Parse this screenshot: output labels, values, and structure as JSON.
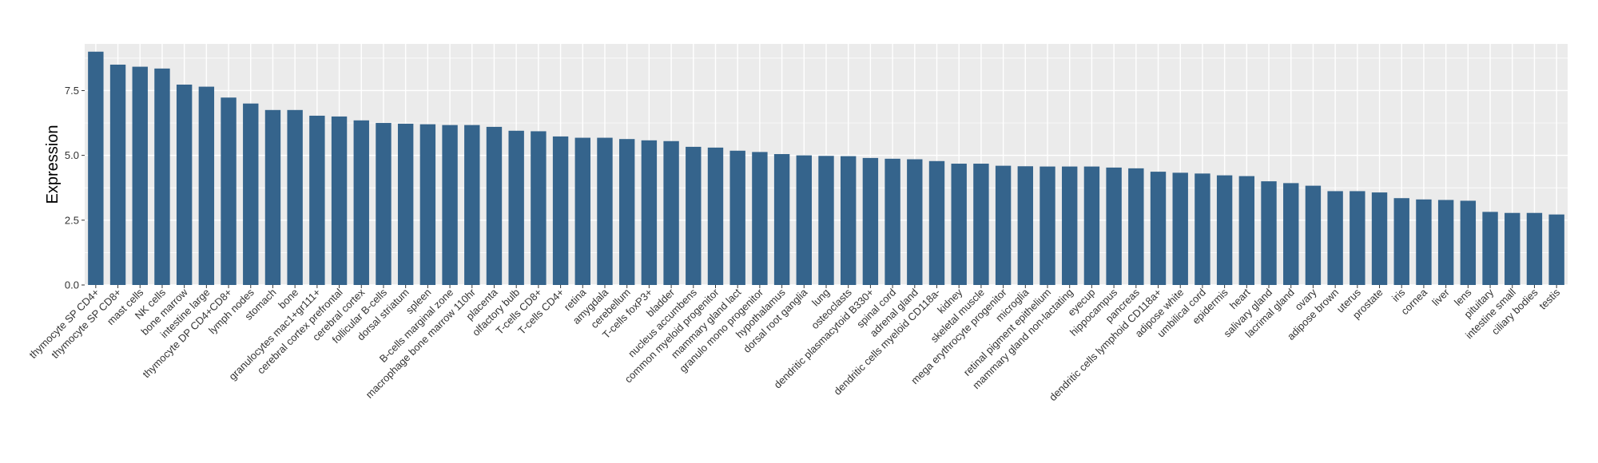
{
  "chart_data": {
    "type": "bar",
    "ylabel": "Expression",
    "xlabel": "",
    "ylim": [
      0,
      9.3
    ],
    "yticks": [
      0.0,
      2.5,
      5.0,
      7.5
    ],
    "ytick_labels": [
      "0.0",
      "2.5",
      "5.0",
      "7.5"
    ],
    "grid": true,
    "bar_color": "#35648C",
    "panel_background": "#EBEBEB",
    "gridline_color": "#FFFFFF",
    "categories": [
      "thymocyte SP CD4+",
      "thymocyte SP CD8+",
      "mast cells",
      "NK cells",
      "bone marrow",
      "intestine large",
      "thymocyte DP CD4+CD8+",
      "lymph nodes",
      "stomach",
      "bone",
      "granulocytes mac1+gr111+",
      "cerebral cortex prefrontal",
      "cerebral cortex",
      "follicular B-cells",
      "dorsal striatum",
      "spleen",
      "B-cells marginal zone",
      "macrophage bone marrow 110hr",
      "placenta",
      "olfactory bulb",
      "T-cells CD8+",
      "T-cells CD4+",
      "retina",
      "amygdala",
      "cerebellum",
      "T-cells foxP3+",
      "bladder",
      "nucleus accumbens",
      "common myeloid progenitor",
      "mammary gland  lact",
      "granulo mono progenitor",
      "hypothalamus",
      "dorsal root ganglia",
      "lung",
      "osteoclasts",
      "dendritic plasmacytoid B330+",
      "spinal cord",
      "adrenal gland",
      "dendritic cells myeloid CD118a-",
      "kidney",
      "skeletal muscle",
      "mega erythrocyte progenitor",
      "microglia",
      "retinal pigment epithelium",
      "mammary gland non-lactating",
      "eyecup",
      "hippocampus",
      "pancreas",
      "dendritic cells lymphoid CD118a+",
      "adipose white",
      "umbilical cord",
      "epidermis",
      "heart",
      "salivary gland",
      "lacrimal gland",
      "ovary",
      "adipose brown",
      "uterus",
      "prostate",
      "iris",
      "cornea",
      "liver",
      "lens",
      "pituitary",
      "intestine small",
      "ciliary bodies",
      "testis"
    ],
    "values": [
      9.0,
      8.5,
      8.42,
      8.35,
      7.73,
      7.65,
      7.23,
      7.0,
      6.75,
      6.75,
      6.53,
      6.5,
      6.35,
      6.25,
      6.22,
      6.2,
      6.17,
      6.17,
      6.1,
      5.95,
      5.93,
      5.73,
      5.68,
      5.68,
      5.63,
      5.58,
      5.55,
      5.33,
      5.3,
      5.18,
      5.13,
      5.05,
      5.0,
      4.98,
      4.97,
      4.9,
      4.87,
      4.85,
      4.78,
      4.68,
      4.68,
      4.6,
      4.58,
      4.57,
      4.57,
      4.57,
      4.53,
      4.5,
      4.37,
      4.33,
      4.3,
      4.23,
      4.2,
      4.0,
      3.93,
      3.83,
      3.62,
      3.62,
      3.57,
      3.35,
      3.3,
      3.28,
      3.25,
      2.82,
      2.78,
      2.78,
      2.72
    ]
  }
}
